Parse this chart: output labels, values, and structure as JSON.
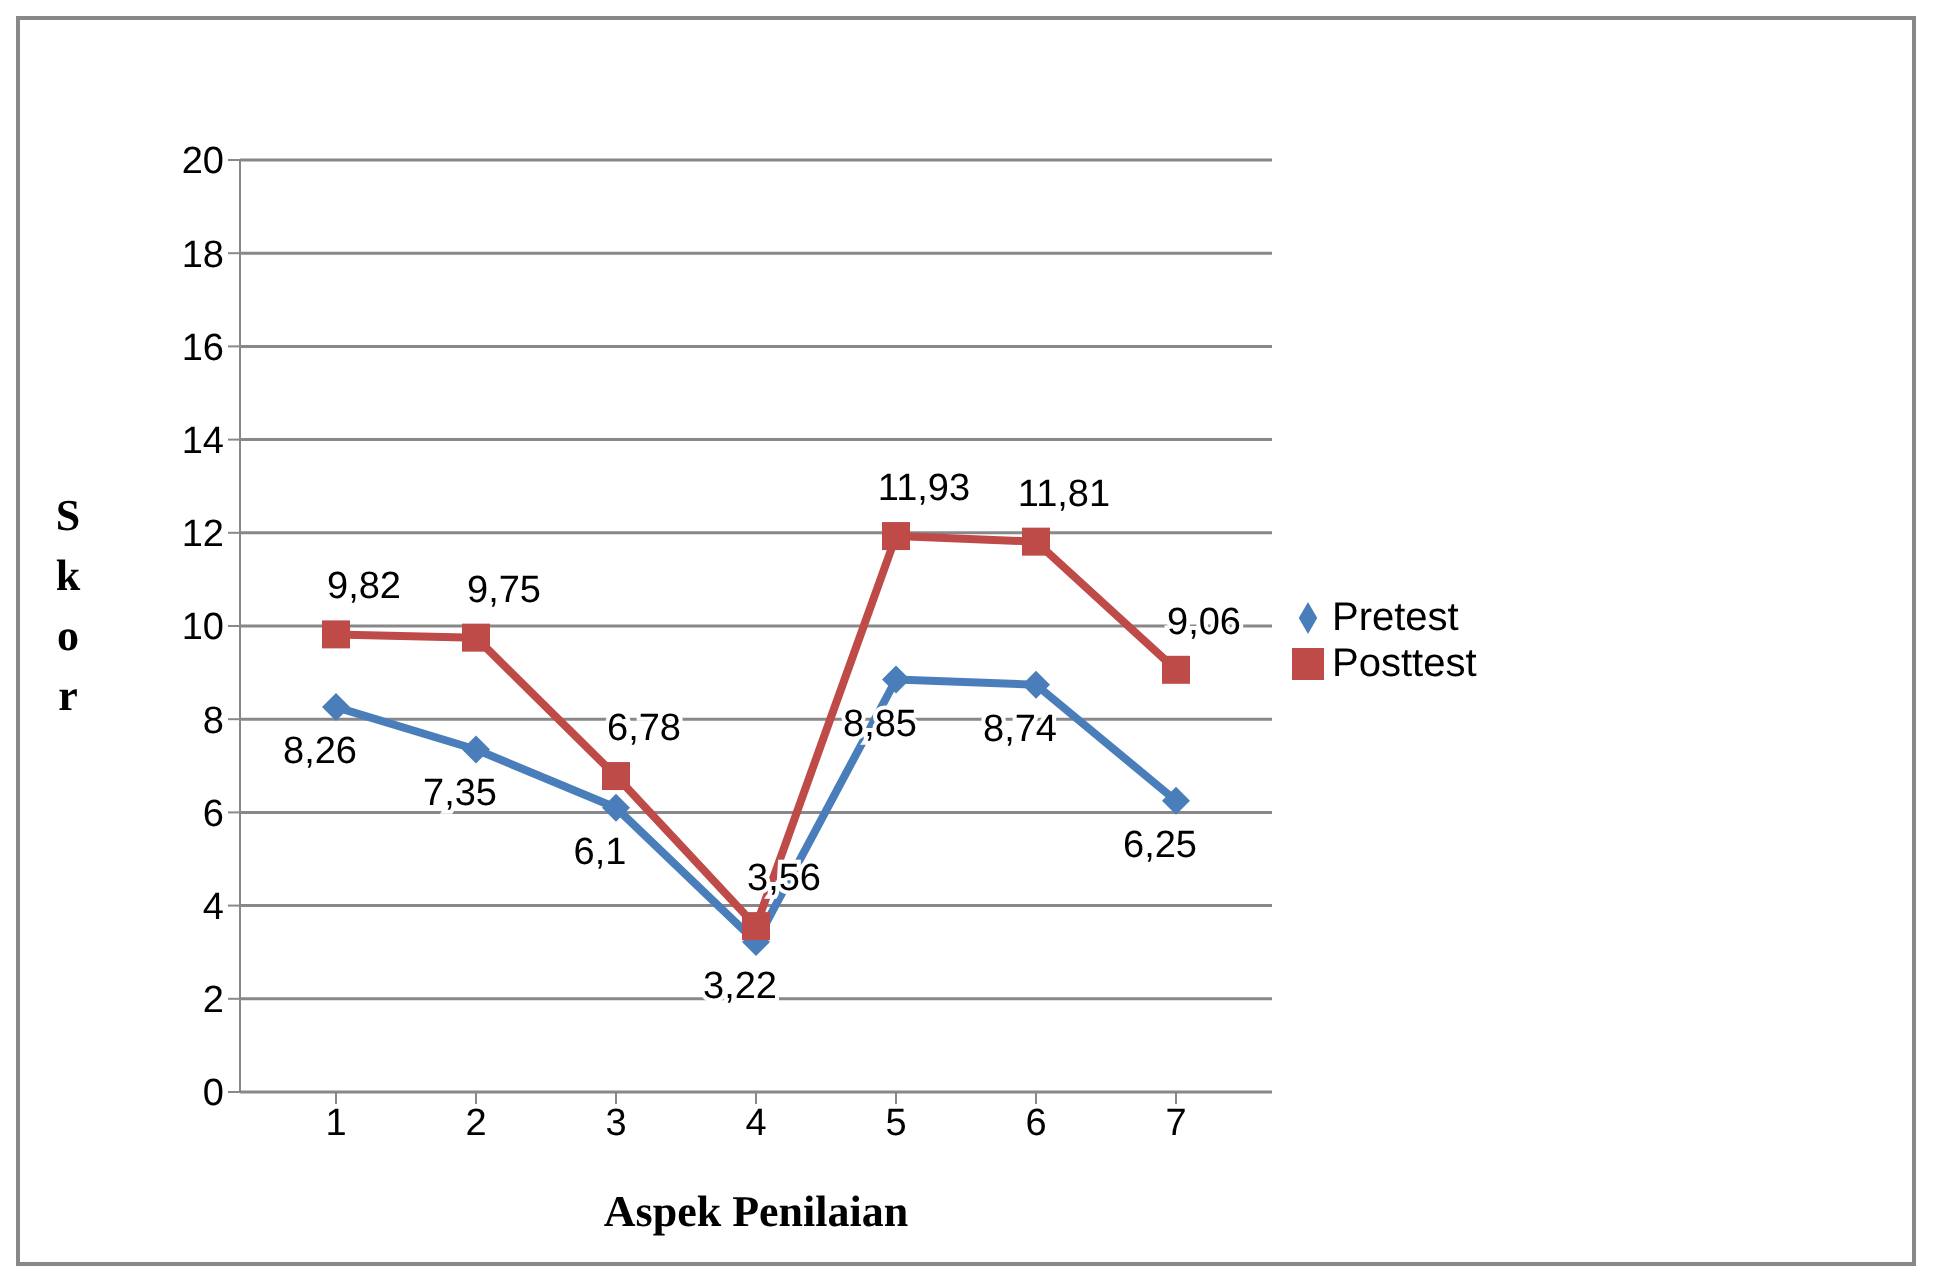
{
  "chart_data": {
    "type": "line",
    "xlabel": "Aspek Penilaian",
    "ylabel": "Skor",
    "categories": [
      "1",
      "2",
      "3",
      "4",
      "5",
      "6",
      "7"
    ],
    "series": [
      {
        "name": "Pretest",
        "color": "#4a7ebb",
        "marker": "diamond",
        "values": [
          8.26,
          7.35,
          6.1,
          3.22,
          8.85,
          8.74,
          6.25
        ],
        "value_labels": [
          "8,26",
          "7,35",
          "6,1",
          "3,22",
          "8,85",
          "8,74",
          "6,25"
        ]
      },
      {
        "name": "Posttest",
        "color": "#be4b48",
        "marker": "square",
        "values": [
          9.82,
          9.75,
          6.78,
          3.56,
          11.93,
          11.81,
          9.06
        ],
        "value_labels": [
          "9,82",
          "9,75",
          "6,78",
          "3,56",
          "11,93",
          "11,81",
          "9,06"
        ]
      }
    ],
    "ylim": [
      0,
      20
    ],
    "yticks": [
      0,
      2,
      4,
      6,
      8,
      10,
      12,
      14,
      16,
      18,
      20
    ],
    "grid": "y",
    "legend": "right"
  }
}
